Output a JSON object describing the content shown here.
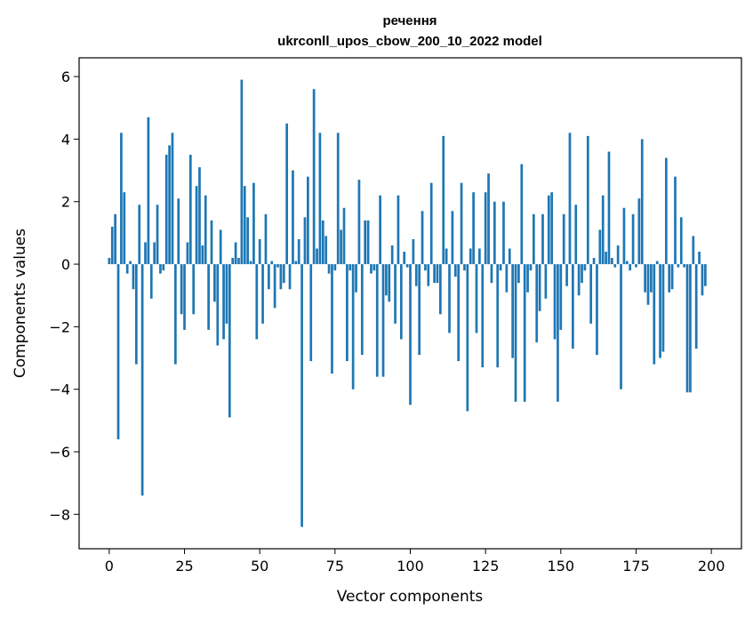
{
  "chart_data": {
    "type": "bar",
    "title": "речення",
    "subtitle": "ukrconll_upos_cbow_200_10_2022 model",
    "xlabel": "Vector components",
    "ylabel": "Components values",
    "xlim": [
      -10,
      210
    ],
    "ylim": [
      -9.1,
      6.6
    ],
    "xticks": [
      0,
      25,
      50,
      75,
      100,
      125,
      150,
      175,
      200
    ],
    "yticks": [
      -8,
      -6,
      -4,
      -2,
      0,
      2,
      4,
      6
    ],
    "ytick_labels": [
      "−8",
      "−6",
      "−4",
      "−2",
      "0",
      "2",
      "4",
      "6"
    ],
    "grid": false,
    "bar_color": "#1f77b4",
    "values": [
      0.2,
      1.2,
      1.6,
      -5.6,
      4.2,
      2.3,
      -0.3,
      0.1,
      -0.8,
      -3.2,
      1.9,
      -7.4,
      0.7,
      4.7,
      -1.1,
      0.7,
      1.9,
      -0.3,
      -0.2,
      3.5,
      3.8,
      4.2,
      -3.2,
      2.1,
      -1.6,
      -2.1,
      0.7,
      3.5,
      -1.6,
      2.5,
      3.1,
      0.6,
      2.2,
      -2.1,
      1.4,
      -1.2,
      -2.6,
      1.1,
      -2.4,
      -1.9,
      -4.9,
      0.2,
      0.7,
      0.2,
      5.9,
      2.5,
      1.5,
      0.1,
      2.6,
      -2.4,
      0.8,
      -1.9,
      1.6,
      -0.8,
      0.1,
      -1.4,
      -0.1,
      -0.8,
      -0.6,
      4.5,
      -0.8,
      3.0,
      0.1,
      0.8,
      -8.4,
      1.5,
      2.8,
      -3.1,
      5.6,
      0.5,
      4.2,
      1.4,
      0.9,
      -0.3,
      -3.5,
      -0.2,
      4.2,
      1.1,
      1.8,
      -3.1,
      -0.2,
      -4.0,
      -0.9,
      2.7,
      -2.9,
      1.4,
      1.4,
      -0.3,
      -0.2,
      -3.6,
      2.2,
      -3.6,
      -1.0,
      -1.2,
      0.6,
      -1.9,
      2.2,
      -2.4,
      0.4,
      -0.1,
      -4.5,
      0.8,
      -0.7,
      -2.9,
      1.7,
      -0.2,
      -0.7,
      2.6,
      -0.6,
      -0.6,
      -1.6,
      4.1,
      0.5,
      -2.2,
      1.7,
      -0.4,
      -3.1,
      2.6,
      -0.2,
      -4.7,
      0.5,
      2.3,
      -2.2,
      0.5,
      -3.3,
      2.3,
      2.9,
      -0.6,
      2.0,
      -3.3,
      -0.2,
      2.0,
      -0.9,
      0.5,
      -3.0,
      -4.4,
      -0.6,
      3.2,
      -4.4,
      -0.9,
      -0.2,
      1.6,
      -2.5,
      -1.5,
      1.6,
      -1.1,
      2.2,
      2.3,
      -2.4,
      -4.4,
      -2.1,
      1.6,
      -0.7,
      4.2,
      -2.7,
      1.9,
      -1.0,
      -0.6,
      -0.2,
      4.1,
      -1.9,
      0.2,
      -2.9,
      1.1,
      2.2,
      0.4,
      3.6,
      0.2,
      -0.1,
      0.6,
      -4.0,
      1.8,
      0.1,
      -0.2,
      1.6,
      -0.1,
      2.1,
      4.0,
      -0.9,
      -1.3,
      -0.9,
      -3.2,
      0.1,
      -3.0,
      -2.8,
      3.4,
      -0.9,
      -0.8,
      2.8,
      -0.1,
      1.5,
      -0.1,
      -4.1,
      -4.1,
      0.9,
      -2.7,
      0.4,
      -1.0,
      -0.7
    ]
  }
}
